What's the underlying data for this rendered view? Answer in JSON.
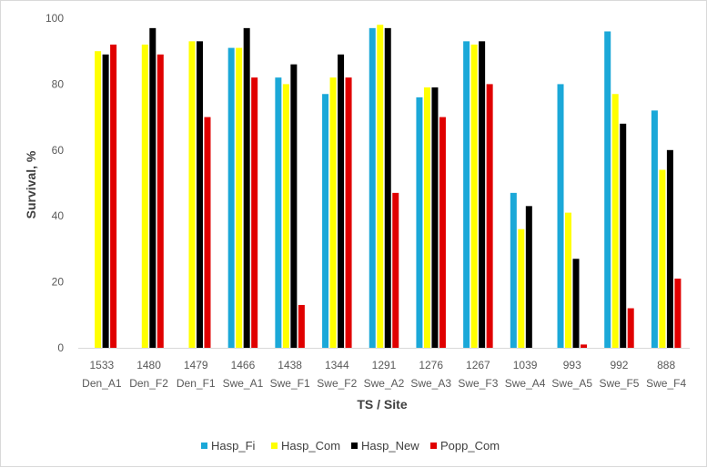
{
  "chart_data": {
    "type": "bar",
    "title": "",
    "xlabel": "TS / Site",
    "ylabel": "Survival, %",
    "ylim": [
      0,
      100
    ],
    "yticks": [
      0,
      20,
      40,
      60,
      80,
      100
    ],
    "grid": false,
    "legend_position": "bottom",
    "categories": [
      {
        "ts": "1533",
        "site": "Den_A1"
      },
      {
        "ts": "1480",
        "site": "Den_F2"
      },
      {
        "ts": "1479",
        "site": "Den_F1"
      },
      {
        "ts": "1466",
        "site": "Swe_A1"
      },
      {
        "ts": "1438",
        "site": "Swe_F1"
      },
      {
        "ts": "1344",
        "site": "Swe_F2"
      },
      {
        "ts": "1291",
        "site": "Swe_A2"
      },
      {
        "ts": "1276",
        "site": "Swe_A3"
      },
      {
        "ts": "1267",
        "site": "Swe_F3"
      },
      {
        "ts": "1039",
        "site": "Swe_A4"
      },
      {
        "ts": "993",
        "site": "Swe_A5"
      },
      {
        "ts": "992",
        "site": "Swe_F5"
      },
      {
        "ts": "888",
        "site": "Swe_F4"
      }
    ],
    "series": [
      {
        "name": "Hasp_Fi",
        "color": "#1ba8d8",
        "values": [
          null,
          null,
          null,
          91,
          82,
          77,
          97,
          76,
          93,
          47,
          80,
          96,
          72
        ]
      },
      {
        "name": "Hasp_Com",
        "color": "#ffff00",
        "values": [
          90,
          92,
          93,
          91,
          80,
          82,
          98,
          79,
          92,
          36,
          41,
          77,
          54
        ]
      },
      {
        "name": "Hasp_New",
        "color": "#000000",
        "values": [
          89,
          97,
          93,
          97,
          86,
          89,
          97,
          79,
          93,
          43,
          27,
          68,
          60
        ]
      },
      {
        "name": "Popp_Com",
        "color": "#e00000",
        "values": [
          92,
          89,
          70,
          82,
          13,
          82,
          47,
          70,
          80,
          null,
          1,
          12,
          21
        ]
      }
    ]
  }
}
